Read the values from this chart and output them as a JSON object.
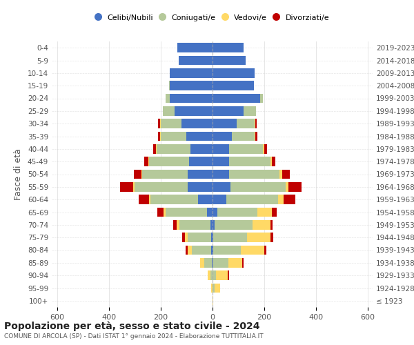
{
  "age_groups": [
    "100+",
    "95-99",
    "90-94",
    "85-89",
    "80-84",
    "75-79",
    "70-74",
    "65-69",
    "60-64",
    "55-59",
    "50-54",
    "45-49",
    "40-44",
    "35-39",
    "30-34",
    "25-29",
    "20-24",
    "15-19",
    "10-14",
    "5-9",
    "0-4"
  ],
  "birth_years": [
    "≤ 1923",
    "1924-1928",
    "1929-1933",
    "1934-1938",
    "1939-1943",
    "1944-1948",
    "1949-1953",
    "1954-1958",
    "1959-1963",
    "1964-1968",
    "1969-1973",
    "1974-1978",
    "1979-1983",
    "1984-1988",
    "1989-1993",
    "1994-1998",
    "1999-2003",
    "2004-2008",
    "2009-2013",
    "2014-2018",
    "2019-2023"
  ],
  "colors": {
    "celibe": "#4472C4",
    "coniugato": "#b5c99a",
    "vedovo": "#ffd966",
    "divorziato": "#c00000"
  },
  "males": {
    "celibe": [
      0,
      0,
      0,
      2,
      5,
      5,
      8,
      20,
      55,
      95,
      95,
      90,
      85,
      100,
      120,
      145,
      165,
      165,
      165,
      130,
      135
    ],
    "coniugato": [
      0,
      0,
      8,
      30,
      75,
      90,
      120,
      160,
      185,
      205,
      175,
      155,
      130,
      100,
      80,
      45,
      15,
      2,
      0,
      0,
      0
    ],
    "vedovo": [
      0,
      3,
      10,
      15,
      15,
      10,
      10,
      8,
      5,
      5,
      3,
      2,
      2,
      2,
      2,
      2,
      0,
      0,
      0,
      0,
      0
    ],
    "divorziato": [
      0,
      0,
      0,
      0,
      8,
      10,
      12,
      25,
      40,
      50,
      30,
      15,
      12,
      8,
      8,
      0,
      0,
      0,
      0,
      0,
      0
    ]
  },
  "females": {
    "celibe": [
      0,
      0,
      0,
      2,
      5,
      5,
      10,
      20,
      55,
      70,
      65,
      65,
      65,
      75,
      95,
      120,
      185,
      160,
      165,
      130,
      120
    ],
    "coniugato": [
      0,
      10,
      15,
      60,
      105,
      130,
      145,
      155,
      200,
      215,
      195,
      160,
      130,
      90,
      70,
      50,
      10,
      2,
      0,
      0,
      0
    ],
    "vedovo": [
      5,
      20,
      45,
      55,
      90,
      90,
      70,
      55,
      20,
      10,
      10,
      5,
      5,
      2,
      2,
      0,
      0,
      0,
      0,
      0,
      0
    ],
    "divorziato": [
      0,
      0,
      5,
      5,
      8,
      10,
      8,
      20,
      45,
      50,
      30,
      15,
      12,
      8,
      5,
      0,
      0,
      0,
      0,
      0,
      0
    ]
  },
  "xlim": 620,
  "title": "Popolazione per età, sesso e stato civile - 2024",
  "subtitle": "COMUNE DI ARCOLA (SP) - Dati ISTAT 1° gennaio 2024 - Elaborazione TUTTITALIA.IT",
  "ylabel_left": "Fasce di età",
  "legend_labels": [
    "Celibi/Nubili",
    "Coniugati/e",
    "Vedovi/e",
    "Divorziati/e"
  ],
  "background_color": "#ffffff",
  "grid_color": "#cccccc"
}
